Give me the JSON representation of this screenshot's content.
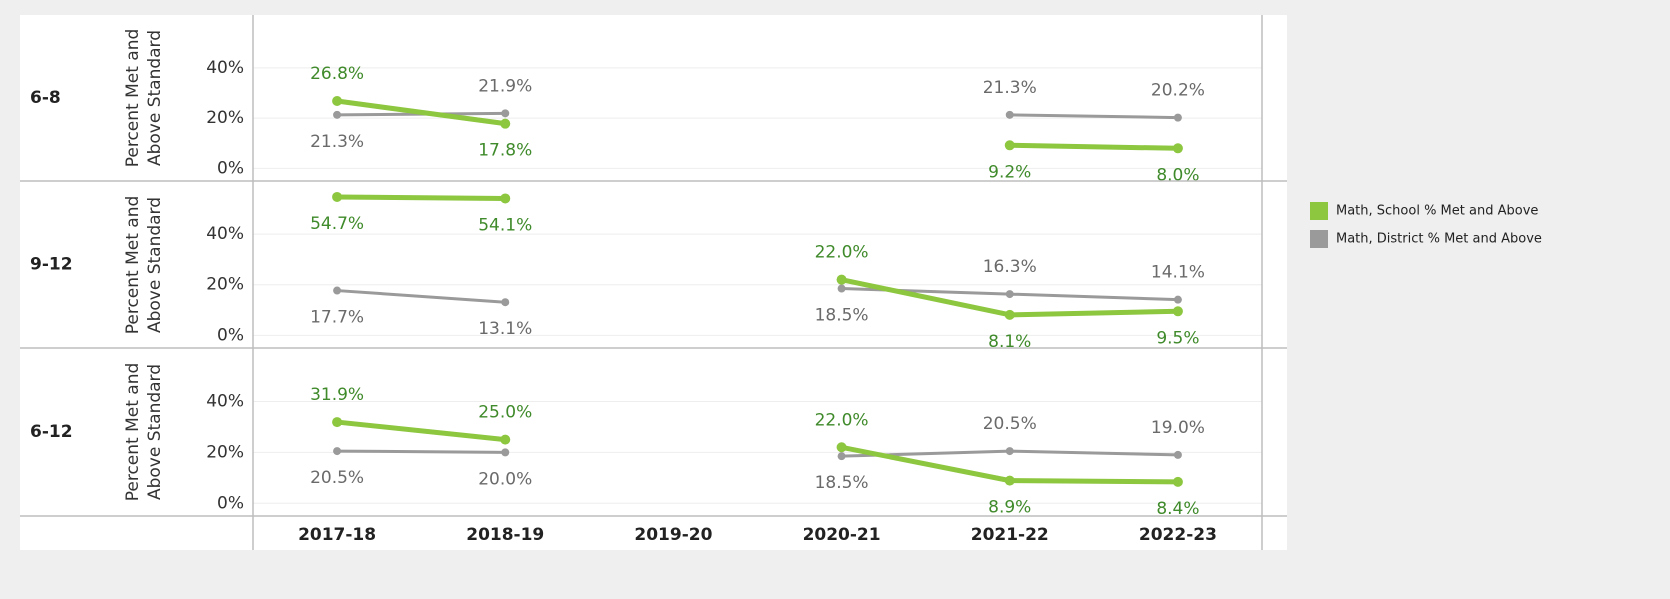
{
  "chart_data": [
    {
      "type": "line",
      "title": "6-8",
      "y_label": "Percent Met and Above Standard",
      "categories": [
        "2017-18",
        "2018-19",
        "2019-20",
        "2020-21",
        "2021-22",
        "2022-23"
      ],
      "ylim": [
        -5,
        61
      ],
      "yticks": [
        {
          "value": 0,
          "label": "0%"
        },
        {
          "value": 20,
          "label": "20%"
        },
        {
          "value": 40,
          "label": "40%"
        }
      ],
      "grid": true,
      "series": [
        {
          "name": "Math, School % Met and Above",
          "color": "#8dc63f",
          "values": [
            26.8,
            17.8,
            null,
            null,
            9.2,
            8.0
          ],
          "value_labels": [
            "26.8%",
            "17.8%",
            null,
            null,
            "9.2%",
            "8.0%"
          ]
        },
        {
          "name": "Math, District % Met and Above",
          "color": "#9a9a9a",
          "values": [
            21.3,
            21.9,
            null,
            null,
            21.3,
            20.2
          ],
          "value_labels": [
            "21.3%",
            "21.9%",
            null,
            null,
            "21.3%",
            "20.2%"
          ]
        }
      ]
    },
    {
      "type": "line",
      "title": "9-12",
      "y_label": "Percent Met and Above Standard",
      "categories": [
        "2017-18",
        "2018-19",
        "2019-20",
        "2020-21",
        "2021-22",
        "2022-23"
      ],
      "ylim": [
        -5,
        61
      ],
      "yticks": [
        {
          "value": 0,
          "label": "0%"
        },
        {
          "value": 20,
          "label": "20%"
        },
        {
          "value": 40,
          "label": "40%"
        }
      ],
      "grid": true,
      "series": [
        {
          "name": "Math, School % Met and Above",
          "color": "#8dc63f",
          "values": [
            54.7,
            54.1,
            null,
            22.0,
            8.1,
            9.5
          ],
          "value_labels": [
            "54.7%",
            "54.1%",
            null,
            "22.0%",
            "8.1%",
            "9.5%"
          ]
        },
        {
          "name": "Math, District % Met and Above",
          "color": "#9a9a9a",
          "values": [
            17.7,
            13.1,
            null,
            18.5,
            16.3,
            14.1
          ],
          "value_labels": [
            "17.7%",
            "13.1%",
            null,
            "18.5%",
            "16.3%",
            "14.1%"
          ]
        }
      ]
    },
    {
      "type": "line",
      "title": "6-12",
      "y_label": "Percent Met and Above Standard",
      "categories": [
        "2017-18",
        "2018-19",
        "2019-20",
        "2020-21",
        "2021-22",
        "2022-23"
      ],
      "ylim": [
        -5,
        61
      ],
      "yticks": [
        {
          "value": 0,
          "label": "0%"
        },
        {
          "value": 20,
          "label": "20%"
        },
        {
          "value": 40,
          "label": "40%"
        }
      ],
      "grid": true,
      "series": [
        {
          "name": "Math, School % Met and Above",
          "color": "#8dc63f",
          "values": [
            31.9,
            25.0,
            null,
            22.0,
            8.9,
            8.4
          ],
          "value_labels": [
            "31.9%",
            "25.0%",
            null,
            "22.0%",
            "8.9%",
            "8.4%"
          ]
        },
        {
          "name": "Math, District % Met and Above",
          "color": "#9a9a9a",
          "values": [
            20.5,
            20.0,
            null,
            18.5,
            20.5,
            19.0
          ],
          "value_labels": [
            "20.5%",
            "20.0%",
            null,
            "18.5%",
            "20.5%",
            "19.0%"
          ]
        }
      ]
    }
  ]
}
